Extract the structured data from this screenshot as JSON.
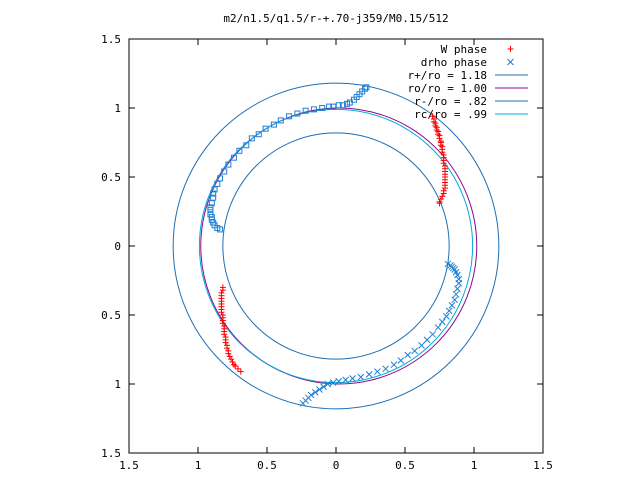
{
  "chart_data": {
    "type": "scatter",
    "title": "m2/n1.5/q1.5/r-+.70-j359/M0.15/512",
    "xlim": [
      -1.5,
      1.5
    ],
    "ylim": [
      -1.5,
      1.5
    ],
    "x_ticks": [
      -1.5,
      -1,
      -0.5,
      0,
      0.5,
      1,
      1.5
    ],
    "y_ticks": [
      -1.5,
      -1,
      -0.5,
      0,
      0.5,
      1,
      1.5
    ],
    "x_tick_labels": [
      "1.5",
      "1",
      "0.5",
      "0",
      "0.5",
      "1",
      "1.5"
    ],
    "y_tick_labels": [
      "1.5",
      "1",
      "0.5",
      "0",
      "0.5",
      "1",
      "1.5"
    ],
    "grid": false,
    "legend_position": "top-right",
    "legend": [
      {
        "key": "w",
        "label": "W phase",
        "kind": "plus",
        "color": "#ff0000"
      },
      {
        "key": "d",
        "label": "drho phase",
        "kind": "cross",
        "color": "#1f7fd4"
      },
      {
        "key": "c1",
        "label": "r+/ro = 1.18",
        "kind": "line",
        "color": "#1f6fb4"
      },
      {
        "key": "c2",
        "label": "ro/ro = 1.00",
        "kind": "line",
        "color": "#8b0a8b"
      },
      {
        "key": "c3",
        "label": "r-/ro = .82",
        "kind": "line",
        "color": "#1f6fb4"
      },
      {
        "key": "c4",
        "label": "rc/ro = .99",
        "kind": "line",
        "color": "#00aadd"
      }
    ],
    "circles": [
      {
        "key": "c1",
        "r": 1.18,
        "cx": 0,
        "cy": 0
      },
      {
        "key": "c2",
        "r": 1.0,
        "cx": 0.02,
        "cy": 0
      },
      {
        "key": "c3",
        "r": 0.82,
        "cx": 0,
        "cy": 0
      },
      {
        "key": "c4",
        "r": 0.99,
        "cx": 0,
        "cy": 0
      }
    ],
    "series": [
      {
        "key": "w_arc1",
        "marker": "plus",
        "color": "#ff0000",
        "points": [
          [
            0.7,
            0.94
          ],
          [
            0.71,
            0.92
          ],
          [
            0.71,
            0.9
          ],
          [
            0.72,
            0.89
          ],
          [
            0.72,
            0.87
          ],
          [
            0.73,
            0.86
          ],
          [
            0.73,
            0.84
          ],
          [
            0.74,
            0.83
          ],
          [
            0.74,
            0.81
          ],
          [
            0.75,
            0.8
          ],
          [
            0.75,
            0.78
          ],
          [
            0.76,
            0.76
          ],
          [
            0.76,
            0.75
          ],
          [
            0.76,
            0.73
          ],
          [
            0.77,
            0.72
          ],
          [
            0.77,
            0.7
          ],
          [
            0.77,
            0.68
          ],
          [
            0.78,
            0.66
          ],
          [
            0.78,
            0.64
          ],
          [
            0.78,
            0.62
          ],
          [
            0.78,
            0.6
          ],
          [
            0.79,
            0.58
          ],
          [
            0.79,
            0.56
          ],
          [
            0.79,
            0.54
          ],
          [
            0.79,
            0.52
          ],
          [
            0.79,
            0.5
          ],
          [
            0.79,
            0.48
          ],
          [
            0.79,
            0.46
          ],
          [
            0.79,
            0.44
          ],
          [
            0.79,
            0.42
          ],
          [
            0.78,
            0.4
          ],
          [
            0.78,
            0.38
          ],
          [
            0.77,
            0.36
          ],
          [
            0.76,
            0.34
          ],
          [
            0.75,
            0.32
          ],
          [
            0.75,
            0.31
          ]
        ]
      },
      {
        "key": "w_arc2",
        "marker": "plus",
        "color": "#ff0000",
        "points": [
          [
            -0.82,
            -0.3
          ],
          [
            -0.82,
            -0.32
          ],
          [
            -0.83,
            -0.34
          ],
          [
            -0.83,
            -0.36
          ],
          [
            -0.83,
            -0.38
          ],
          [
            -0.83,
            -0.4
          ],
          [
            -0.83,
            -0.42
          ],
          [
            -0.83,
            -0.44
          ],
          [
            -0.83,
            -0.46
          ],
          [
            -0.83,
            -0.48
          ],
          [
            -0.82,
            -0.5
          ],
          [
            -0.82,
            -0.52
          ],
          [
            -0.82,
            -0.54
          ],
          [
            -0.82,
            -0.56
          ],
          [
            -0.81,
            -0.58
          ],
          [
            -0.81,
            -0.6
          ],
          [
            -0.81,
            -0.62
          ],
          [
            -0.81,
            -0.64
          ],
          [
            -0.8,
            -0.66
          ],
          [
            -0.8,
            -0.68
          ],
          [
            -0.8,
            -0.7
          ],
          [
            -0.79,
            -0.72
          ],
          [
            -0.79,
            -0.74
          ],
          [
            -0.78,
            -0.76
          ],
          [
            -0.78,
            -0.78
          ],
          [
            -0.77,
            -0.8
          ],
          [
            -0.76,
            -0.82
          ],
          [
            -0.75,
            -0.84
          ],
          [
            -0.74,
            -0.86
          ],
          [
            -0.73,
            -0.87
          ],
          [
            -0.71,
            -0.89
          ],
          [
            -0.69,
            -0.91
          ]
        ]
      },
      {
        "key": "d_arc1",
        "marker": "square",
        "color": "#1f7fd4",
        "points": [
          [
            -0.84,
            0.12
          ],
          [
            -0.86,
            0.13
          ],
          [
            -0.88,
            0.15
          ],
          [
            -0.89,
            0.17
          ],
          [
            -0.9,
            0.19
          ],
          [
            -0.9,
            0.21
          ],
          [
            -0.91,
            0.23
          ],
          [
            -0.91,
            0.26
          ],
          [
            -0.91,
            0.28
          ],
          [
            -0.9,
            0.31
          ],
          [
            -0.89,
            0.35
          ],
          [
            -0.89,
            0.38
          ],
          [
            -0.88,
            0.41
          ],
          [
            -0.86,
            0.45
          ],
          [
            -0.84,
            0.49
          ],
          [
            -0.81,
            0.54
          ],
          [
            -0.78,
            0.59
          ],
          [
            -0.74,
            0.64
          ],
          [
            -0.7,
            0.69
          ],
          [
            -0.65,
            0.73
          ],
          [
            -0.61,
            0.78
          ],
          [
            -0.56,
            0.81
          ],
          [
            -0.51,
            0.85
          ],
          [
            -0.45,
            0.88
          ],
          [
            -0.4,
            0.91
          ],
          [
            -0.34,
            0.94
          ],
          [
            -0.28,
            0.96
          ],
          [
            -0.22,
            0.98
          ],
          [
            -0.16,
            0.99
          ],
          [
            -0.1,
            1.0
          ],
          [
            -0.05,
            1.01
          ],
          [
            -0.02,
            1.01
          ],
          [
            0.02,
            1.02
          ],
          [
            0.05,
            1.02
          ],
          [
            0.08,
            1.03
          ],
          [
            0.1,
            1.04
          ],
          [
            0.13,
            1.06
          ],
          [
            0.15,
            1.08
          ],
          [
            0.17,
            1.1
          ],
          [
            0.19,
            1.12
          ],
          [
            0.21,
            1.14
          ],
          [
            0.22,
            1.15
          ]
        ]
      },
      {
        "key": "d_arc2",
        "marker": "cross",
        "color": "#1f7fd4",
        "points": [
          [
            0.81,
            -0.13
          ],
          [
            0.83,
            -0.14
          ],
          [
            0.84,
            -0.15
          ],
          [
            0.85,
            -0.16
          ],
          [
            0.86,
            -0.17
          ],
          [
            0.87,
            -0.19
          ],
          [
            0.88,
            -0.21
          ],
          [
            0.89,
            -0.24
          ],
          [
            0.89,
            -0.27
          ],
          [
            0.88,
            -0.31
          ],
          [
            0.87,
            -0.35
          ],
          [
            0.86,
            -0.39
          ],
          [
            0.84,
            -0.43
          ],
          [
            0.82,
            -0.47
          ],
          [
            0.8,
            -0.51
          ],
          [
            0.77,
            -0.55
          ],
          [
            0.74,
            -0.59
          ],
          [
            0.7,
            -0.64
          ],
          [
            0.66,
            -0.68
          ],
          [
            0.62,
            -0.72
          ],
          [
            0.57,
            -0.76
          ],
          [
            0.52,
            -0.79
          ],
          [
            0.47,
            -0.83
          ],
          [
            0.42,
            -0.86
          ],
          [
            0.36,
            -0.89
          ],
          [
            0.3,
            -0.91
          ],
          [
            0.24,
            -0.93
          ],
          [
            0.18,
            -0.95
          ],
          [
            0.12,
            -0.96
          ],
          [
            0.07,
            -0.97
          ],
          [
            0.02,
            -0.98
          ],
          [
            -0.02,
            -0.99
          ],
          [
            -0.06,
            -1.0
          ],
          [
            -0.09,
            -1.02
          ],
          [
            -0.12,
            -1.04
          ],
          [
            -0.15,
            -1.06
          ],
          [
            -0.18,
            -1.08
          ],
          [
            -0.2,
            -1.1
          ],
          [
            -0.22,
            -1.12
          ],
          [
            -0.24,
            -1.14
          ]
        ]
      }
    ]
  }
}
